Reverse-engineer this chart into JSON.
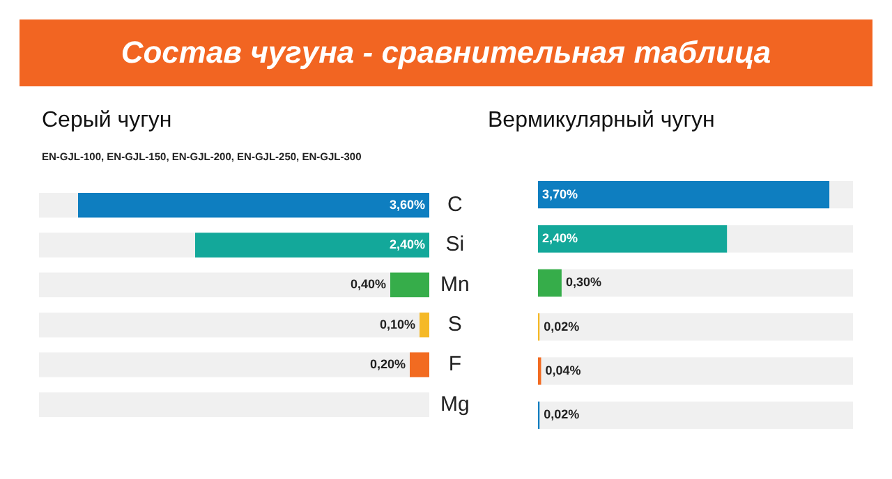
{
  "chart_data": [
    {
      "type": "bar",
      "title": "Состав чугуна - сравнительная таблица",
      "subtitle": "Серый чугун",
      "annotations": [
        "EN-GJL-100, EN-GJL-150, EN-GJL-200, EN-GJL-250, EN-GJL-300"
      ],
      "orientation": "horizontal",
      "stacked": true,
      "categories": [
        "C",
        "Si",
        "Mn",
        "S",
        "F",
        "Mg"
      ],
      "xlim": [
        4,
        0
      ],
      "tick_labels": "y",
      "series": [
        {
          "colors": [
            "#0e7ec0",
            "#13a89a",
            "#36ad4a",
            "#f5b927",
            "#f26b21",
            "#0e7ec0"
          ],
          "values": [
            3.6,
            2.4,
            0.4,
            0.1,
            0.2,
            null
          ],
          "value_labels": [
            "3,60%",
            "2,40%",
            "0,40%",
            "0,10%",
            "0,20%",
            null
          ]
        },
        {
          "color": "#f0f0f0",
          "values": [
            0.4,
            1.6,
            3.6,
            3.9,
            3.8,
            4
          ]
        }
      ]
    },
    {
      "type": "bar",
      "subtitle": "Вермикулярный чугун",
      "orientation": "horizontal",
      "stacked": true,
      "categories": [
        null,
        null,
        null,
        null,
        null,
        null
      ],
      "xlim": [
        0,
        4
      ],
      "tick_labels": false,
      "series": [
        {
          "colors": [
            "#0e7ec0",
            "#13a89a",
            "#36ad4a",
            "#f5b927",
            "#f26b21",
            "#0e7ec0"
          ],
          "values": [
            3.7,
            2.4,
            0.3,
            0.02,
            0.04,
            0.02
          ],
          "value_labels": [
            "3,70%",
            "2,40%",
            "0,30%",
            "0,02%",
            "0,04%",
            "0,02%"
          ]
        },
        {
          "color": "#f0f0f0",
          "values": [
            0.3,
            1.6,
            3.7,
            3.98,
            3.96,
            3.98
          ]
        }
      ]
    }
  ]
}
